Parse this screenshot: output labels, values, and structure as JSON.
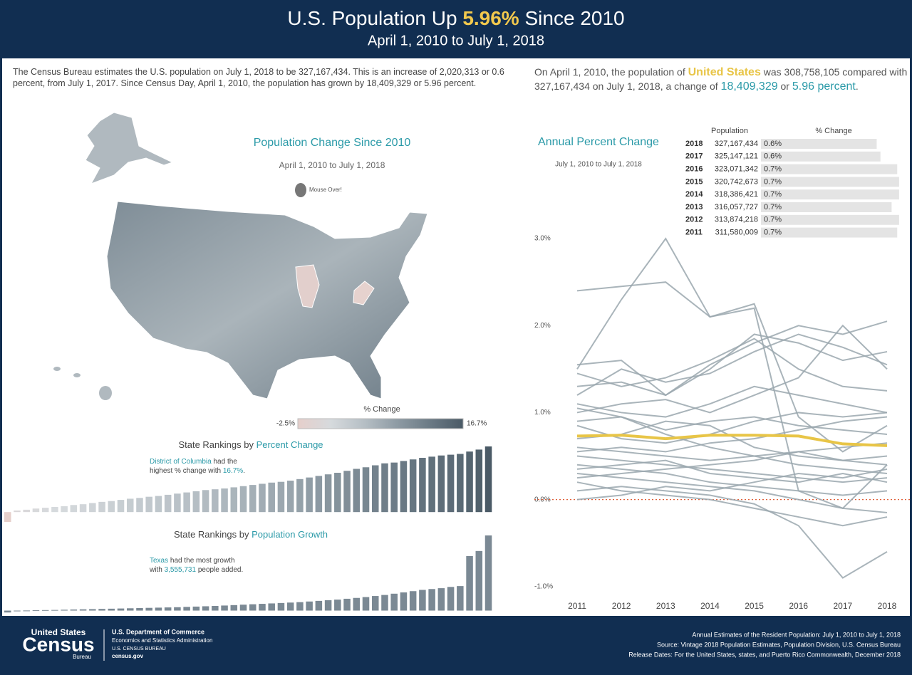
{
  "header": {
    "title_parts": [
      "U.S. Population Up ",
      "5.96%",
      " Since 2010"
    ],
    "subtitle": "April 1, 2010 to July 1, 2018"
  },
  "intro": "The Census Bureau estimates the U.S. population on July 1, 2018 to be 327,167,434. This is an increase of 2,020,313 or 0.6 percent, from July 1, 2017. Since Census Day, April 1, 2010, the population has grown by 18,409,329 or 5.96 percent.",
  "summary_parts": [
    "On April 1, 2010, the population of ",
    "United States",
    " was 308,758,105 compared with 327,167,434 on July 1, 2018, a change of ",
    "18,409,329",
    " or ",
    "5.96 percent",
    "."
  ],
  "map": {
    "title": "Population Change Since 2010",
    "subtitle": "April 1, 2010 to July 1, 2018",
    "hint": "Mouse Over!",
    "legend_title": "% Change",
    "legend_ticks": [
      {
        "value": -2.5,
        "label": "-2.5%"
      },
      {
        "value": 16.7,
        "label": "16.7%"
      }
    ],
    "colors": [
      "#e6cfcb",
      "#d6dadd",
      "#b6bfc5",
      "#8e9ba4",
      "#6b7a85",
      "#4a5a66"
    ]
  },
  "table": {
    "headers": [
      "Population",
      "% Change"
    ],
    "rows": [
      {
        "year": "2018",
        "population": "327,167,434",
        "pct": 0.62,
        "pct_label": "0.6%"
      },
      {
        "year": "2017",
        "population": "325,147,121",
        "pct": 0.64,
        "pct_label": "0.6%"
      },
      {
        "year": "2016",
        "population": "323,071,342",
        "pct": 0.73,
        "pct_label": "0.7%"
      },
      {
        "year": "2015",
        "population": "320,742,673",
        "pct": 0.74,
        "pct_label": "0.7%"
      },
      {
        "year": "2014",
        "population": "318,386,421",
        "pct": 0.74,
        "pct_label": "0.7%"
      },
      {
        "year": "2013",
        "population": "316,057,727",
        "pct": 0.7,
        "pct_label": "0.7%"
      },
      {
        "year": "2012",
        "population": "313,874,218",
        "pct": 0.74,
        "pct_label": "0.7%"
      },
      {
        "year": "2011",
        "population": "311,580,009",
        "pct": 0.73,
        "pct_label": "0.7%"
      }
    ]
  },
  "chart_data": [
    {
      "type": "bar",
      "title_parts": [
        "State Rankings by ",
        "Percent Change"
      ],
      "annotation_lines": [
        [
          "District of Columbia",
          " had the"
        ],
        [
          "highest % change with ",
          "16.7%",
          "."
        ]
      ],
      "values": [
        -2.5,
        0.4,
        0.6,
        0.9,
        1.1,
        1.3,
        1.5,
        1.8,
        2.0,
        2.3,
        2.6,
        2.8,
        3.1,
        3.4,
        3.6,
        3.9,
        4.1,
        4.4,
        4.7,
        5.0,
        5.3,
        5.6,
        5.8,
        6.0,
        6.3,
        6.6,
        6.9,
        7.2,
        7.5,
        7.7,
        8.0,
        8.4,
        8.8,
        9.2,
        9.6,
        10.0,
        10.5,
        11.0,
        11.4,
        11.9,
        12.4,
        12.6,
        13.0,
        13.4,
        13.8,
        14.1,
        14.4,
        14.6,
        14.8,
        15.4,
        15.9,
        16.7
      ],
      "ylim": [
        -2.5,
        16.7
      ]
    },
    {
      "type": "bar",
      "title_parts": [
        "State Rankings by ",
        "Population Growth"
      ],
      "annotation_lines": [
        [
          "Texas",
          " had the most growth"
        ],
        [
          "with ",
          "3,555,731",
          " people added."
        ]
      ],
      "values": [
        -90000,
        -20000,
        5000,
        15000,
        25000,
        30000,
        40000,
        50000,
        60000,
        70000,
        80000,
        90000,
        100000,
        110000,
        120000,
        130000,
        140000,
        150000,
        160000,
        175000,
        190000,
        205000,
        220000,
        240000,
        260000,
        280000,
        300000,
        320000,
        340000,
        360000,
        380000,
        400000,
        430000,
        460000,
        490000,
        520000,
        560000,
        600000,
        640000,
        690000,
        740000,
        800000,
        860000,
        920000,
        980000,
        1020000,
        1060000,
        1120000,
        1160000,
        2580000,
        2820000,
        3555731
      ],
      "color": "#7b8994",
      "ylim": [
        -150000,
        3555731
      ]
    },
    {
      "type": "line",
      "title": "Annual Percent Change",
      "subtitle": "July 1, 2010 to July 1, 2018",
      "categories": [
        "2011",
        "2012",
        "2013",
        "2014",
        "2015",
        "2016",
        "2017",
        "2018"
      ],
      "ylim": [
        -1.1,
        3.05
      ],
      "yticks": [
        {
          "value": 3,
          "label": "3.0%"
        },
        {
          "value": 2,
          "label": "2.0%"
        },
        {
          "value": 1,
          "label": "1.0%"
        },
        {
          "value": 0,
          "label": "0.0%"
        },
        {
          "value": -1,
          "label": "-1.0%"
        }
      ],
      "zero_line": true,
      "series": [
        {
          "color": "#9aa7ae",
          "values": [
            2.4,
            2.45,
            2.5,
            2.1,
            2.25,
            0.95,
            0.55,
            0.85
          ]
        },
        {
          "color": "#9aa7ae",
          "values": [
            1.5,
            2.3,
            3.0,
            2.1,
            2.2,
            0.1,
            -0.1,
            0.4
          ]
        },
        {
          "color": "#9aa7ae",
          "values": [
            1.55,
            1.6,
            1.2,
            1.55,
            1.8,
            2.0,
            1.9,
            2.05
          ]
        },
        {
          "color": "#9aa7ae",
          "values": [
            1.3,
            1.35,
            1.2,
            1.5,
            1.9,
            1.8,
            1.6,
            1.7
          ]
        },
        {
          "color": "#9aa7ae",
          "values": [
            1.45,
            1.3,
            1.4,
            1.6,
            1.85,
            1.5,
            1.3,
            1.25
          ]
        },
        {
          "color": "#9aa7ae",
          "values": [
            1.2,
            1.5,
            1.35,
            1.45,
            1.7,
            1.9,
            1.75,
            1.55
          ]
        },
        {
          "color": "#9aa7ae",
          "values": [
            1.1,
            1.0,
            0.95,
            1.1,
            1.3,
            1.2,
            1.1,
            1.0
          ]
        },
        {
          "color": "#9aa7ae",
          "values": [
            1.0,
            1.1,
            1.15,
            1.0,
            1.2,
            1.4,
            2.0,
            1.5
          ]
        },
        {
          "color": "#9aa7ae",
          "values": [
            0.9,
            0.95,
            0.8,
            0.9,
            0.95,
            0.85,
            0.8,
            0.75
          ]
        },
        {
          "color": "#9aa7ae",
          "values": [
            0.85,
            0.7,
            0.65,
            0.75,
            0.9,
            1.0,
            0.95,
            1.0
          ]
        },
        {
          "color": "#9aa7ae",
          "values": [
            0.7,
            0.75,
            0.9,
            0.85,
            0.6,
            0.5,
            0.45,
            0.4
          ]
        },
        {
          "color": "#9aa7ae",
          "values": [
            0.6,
            0.55,
            0.5,
            0.45,
            0.5,
            0.4,
            0.35,
            0.3
          ]
        },
        {
          "color": "#9aa7ae",
          "values": [
            0.5,
            0.45,
            0.4,
            0.35,
            0.3,
            0.25,
            0.2,
            0.25
          ]
        },
        {
          "color": "#9aa7ae",
          "values": [
            0.4,
            0.35,
            0.3,
            0.2,
            0.15,
            0.1,
            0.05,
            0.1
          ]
        },
        {
          "color": "#9aa7ae",
          "values": [
            0.3,
            0.25,
            0.2,
            0.15,
            0.1,
            0.0,
            -0.1,
            -0.15
          ]
        },
        {
          "color": "#9aa7ae",
          "values": [
            0.2,
            0.1,
            0.05,
            0.0,
            -0.1,
            -0.2,
            -0.3,
            -0.2
          ]
        },
        {
          "color": "#9aa7ae",
          "values": [
            0.1,
            0.15,
            0.1,
            0.05,
            -0.05,
            -0.3,
            -0.9,
            -0.6
          ]
        },
        {
          "color": "#9aa7ae",
          "values": [
            0.0,
            0.05,
            0.15,
            0.1,
            0.2,
            0.3,
            0.25,
            0.35
          ]
        },
        {
          "color": "#9aa7ae",
          "values": [
            0.25,
            0.3,
            0.35,
            0.4,
            0.45,
            0.55,
            0.6,
            0.65
          ]
        },
        {
          "color": "#9aa7ae",
          "values": [
            0.55,
            0.6,
            0.55,
            0.65,
            0.7,
            0.8,
            0.9,
            0.95
          ]
        },
        {
          "color": "#9aa7ae",
          "values": [
            0.35,
            0.4,
            0.45,
            0.3,
            0.25,
            0.2,
            0.3,
            0.2
          ]
        },
        {
          "color": "#9aa7ae",
          "values": [
            1.05,
            0.95,
            0.75,
            0.6,
            0.5,
            0.55,
            0.45,
            0.5
          ]
        },
        {
          "name": "United States",
          "color": "#e8c547",
          "values": [
            0.73,
            0.74,
            0.7,
            0.74,
            0.74,
            0.73,
            0.64,
            0.62
          ]
        }
      ]
    }
  ],
  "footer": {
    "logo": [
      "United States",
      "Census",
      "Bureau"
    ],
    "department": [
      "U.S. Department of Commerce",
      "Economics and Statistics Administration",
      "U.S. CENSUS BUREAU",
      "census.gov"
    ],
    "source": [
      "Annual Estimates of the Resident Population: July 1, 2010 to July 1, 2018",
      "Source: Vintage 2018 Population Estimates, Population Division, U.S. Census Bureau",
      "Release Dates: For the United States, states, and Puerto Rico Commonwealth, December 2018"
    ]
  }
}
